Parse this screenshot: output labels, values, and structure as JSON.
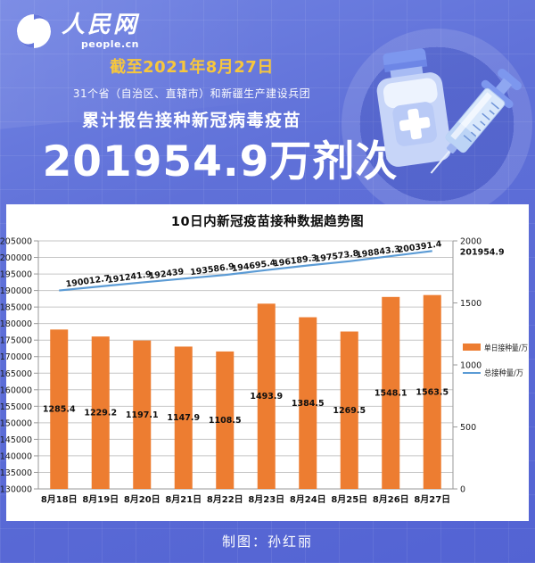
{
  "header": {
    "logo_cn": "人民网",
    "logo_en": "people.cn",
    "date_line": "截至2021年8月27日",
    "scope_line": "31个省（自治区、直辖市）和新疆生产建设兵团",
    "subtitle": "累计报告接种新冠病毒疫苗",
    "big_number": "201954.9万剂次"
  },
  "chart_data": {
    "type": "bar",
    "title": "10日内新冠疫苗接种数据趋势图",
    "categories": [
      "8月18日",
      "8月19日",
      "8月20日",
      "8月21日",
      "8月22日",
      "8月23日",
      "8月24日",
      "8月25日",
      "8月26日",
      "8月27日"
    ],
    "series": [
      {
        "name": "单日接种量/万",
        "type": "bar",
        "axis": "right",
        "color": "#ED7D31",
        "values": [
          1285.4,
          1229.2,
          1197.1,
          1147.9,
          1108.5,
          1493.9,
          1384.5,
          1269.5,
          1548.1,
          1563.5
        ]
      },
      {
        "name": "总接种量/万",
        "type": "line",
        "axis": "left",
        "color": "#5B9BD5",
        "values": [
          190012.7,
          191241.9,
          192439,
          193586.9,
          194695.4,
          196189.3,
          197573.8,
          198843.3,
          200391.4,
          201954.9
        ]
      }
    ],
    "left_axis": {
      "min": 130000,
      "max": 205000,
      "step": 5000
    },
    "right_axis": {
      "min": 0,
      "max": 2000,
      "step": 500
    },
    "grid": "horizontal",
    "legend_position": "right"
  },
  "footer": {
    "credit": "制图：孙红丽"
  },
  "colors": {
    "background_blue": "#5F70D8",
    "accent_yellow": "#F7C73C",
    "bar_orange": "#ED7D31",
    "line_blue": "#5B9BD5",
    "chart_background": "#FFFFFF",
    "text_white": "#FFFFFF"
  }
}
